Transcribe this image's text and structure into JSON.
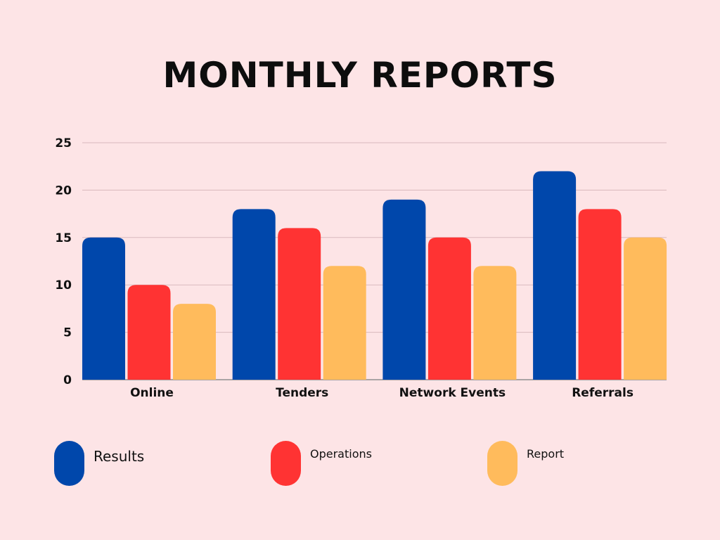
{
  "title": "MONTHLY REPORTS",
  "chart_data": {
    "type": "bar",
    "title": "MONTHLY REPORTS",
    "xlabel": "",
    "ylabel": "",
    "categories": [
      "Online",
      "Tenders",
      "Network Events",
      "Referrals"
    ],
    "series": [
      {
        "name": "Results",
        "color": "#0047ab",
        "values": [
          15,
          18,
          19,
          22
        ]
      },
      {
        "name": "Operations",
        "color": "#ff3333",
        "values": [
          10,
          16,
          15,
          18
        ]
      },
      {
        "name": "Report",
        "color": "#ffbb5c",
        "values": [
          8,
          12,
          12,
          15
        ]
      }
    ],
    "ylim": [
      0,
      25
    ],
    "yticks": [
      "0",
      "5",
      "10",
      "15",
      "20",
      "25"
    ],
    "grid": true,
    "legend_position": "bottom"
  }
}
